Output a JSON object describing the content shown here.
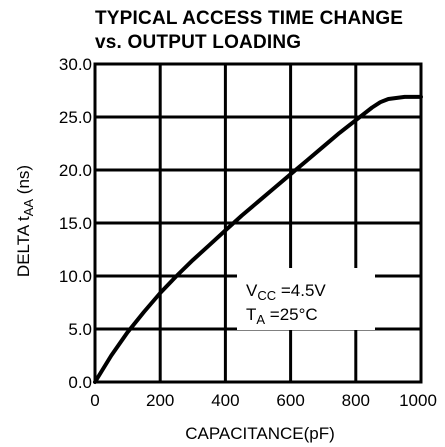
{
  "chart_data": {
    "type": "line",
    "title_lines": [
      "TYPICAL ACCESS TIME CHANGE",
      "vs. OUTPUT LOADING"
    ],
    "xlabel": "CAPACITANCE(pF)",
    "ylabel": {
      "main": "DELTA t",
      "sub": "AA",
      "unit": " (ns)"
    },
    "xlim": [
      0,
      1000
    ],
    "ylim": [
      0,
      30
    ],
    "x_ticks": [
      "0",
      "200",
      "400",
      "600",
      "800",
      "1000"
    ],
    "y_ticks": [
      "0.0",
      "5.0",
      "10.0",
      "15.0",
      "20.0",
      "25.0",
      "30.0"
    ],
    "grid": true,
    "series": [
      {
        "x": [
          0,
          50,
          100,
          150,
          200,
          250,
          300,
          350,
          400,
          450,
          500,
          550,
          600,
          650,
          700,
          750,
          800,
          850,
          875,
          900,
          950,
          1000
        ],
        "y": [
          0,
          2.5,
          4.7,
          6.6,
          8.4,
          10.0,
          11.5,
          12.9,
          14.3,
          15.7,
          17.0,
          18.3,
          19.6,
          20.9,
          22.2,
          23.5,
          24.7,
          25.9,
          26.4,
          26.7,
          26.9,
          26.9
        ]
      }
    ],
    "annotations": [
      {
        "main": "V",
        "sub": "CC",
        "rest": " =4.5V"
      },
      {
        "main": "T",
        "sub": "A",
        "rest": " =25°C"
      }
    ]
  }
}
